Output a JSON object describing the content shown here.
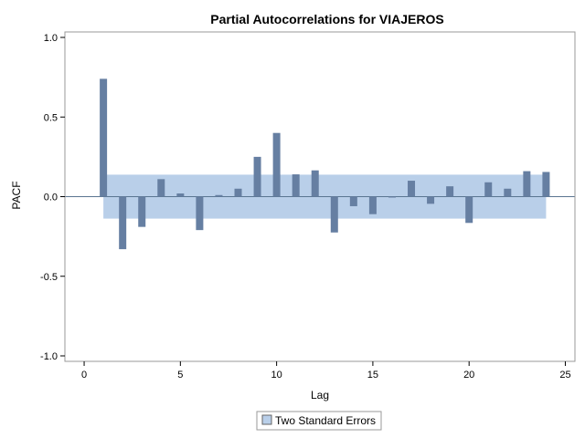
{
  "chart_data": {
    "type": "bar",
    "title": "Partial Autocorrelations for VIAJEROS",
    "xlabel": "Lag",
    "ylabel": "PACF",
    "xlim": [
      -1,
      25.5
    ],
    "ylim": [
      -1.0,
      1.0
    ],
    "x_ticks": [
      0,
      5,
      10,
      15,
      20,
      25
    ],
    "x_tick_labels": [
      "0",
      "5",
      "10",
      "15",
      "20",
      "25"
    ],
    "y_ticks": [
      -1.0,
      -0.5,
      0.0,
      0.5,
      1.0
    ],
    "y_tick_labels": [
      "-1.0",
      "-0.5",
      "0.0",
      "0.5",
      "1.0"
    ],
    "grid": false,
    "lags": [
      1,
      2,
      3,
      4,
      5,
      6,
      7,
      8,
      9,
      10,
      11,
      12,
      13,
      14,
      15,
      16,
      17,
      18,
      19,
      20,
      21,
      22,
      23,
      24
    ],
    "values": [
      0.74,
      -0.33,
      -0.19,
      0.11,
      0.02,
      -0.21,
      0.01,
      0.05,
      0.25,
      0.4,
      0.14,
      0.165,
      -0.225,
      -0.06,
      -0.11,
      -0.005,
      0.1,
      -0.045,
      0.065,
      -0.165,
      0.09,
      0.05,
      0.16,
      0.155
    ],
    "band": {
      "name": "Two Standard Errors",
      "lower": -0.138,
      "upper": 0.138,
      "x_from": 1,
      "x_to": 24
    },
    "legend": {
      "position": "bottom-center",
      "entries": [
        "Two Standard Errors"
      ]
    },
    "colors": {
      "bar": "#667fa2",
      "band": "#b9cfe9",
      "zero_line": "#5a7590",
      "frame": "#9a9a9a"
    }
  }
}
